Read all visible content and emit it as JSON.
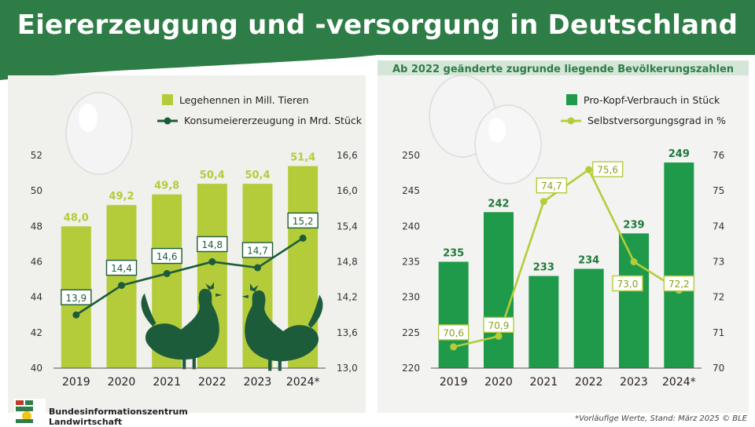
{
  "header": {
    "title": "Eiererzeugung und -versorgung in Deutschland"
  },
  "subheading": "Ab 2022 geänderte zugrunde liegende Bevölkerungszahlen",
  "footer": {
    "org_line1": "Bundesinformationszentrum",
    "org_line2": "Landwirtschaft",
    "footnote": "*Vorläufige Werte, Stand: März 2025 © BLE"
  },
  "colors": {
    "brand_green": "#2e7d46",
    "light_green": "#b5cc3a",
    "dark_line": "#1d5c3b",
    "mid_green": "#1f9a4a"
  },
  "chart_data": [
    {
      "type": "bar",
      "categories": [
        "2019",
        "2020",
        "2021",
        "2022",
        "2023",
        "2024*"
      ],
      "series": [
        {
          "name": "Legehennen in Mill. Tieren",
          "type": "bar",
          "axis": "left",
          "values": [
            48.0,
            49.2,
            49.8,
            50.4,
            50.4,
            51.4
          ],
          "labels": [
            "48,0",
            "49,2",
            "49,8",
            "50,4",
            "50,4",
            "51,4"
          ]
        },
        {
          "name": "Konsumeiererzeugung in Mrd. Stück",
          "type": "line",
          "axis": "right",
          "values": [
            13.9,
            14.4,
            14.6,
            14.8,
            14.7,
            15.2
          ],
          "labels": [
            "13,9",
            "14,4",
            "14,6",
            "14,8",
            "14,7",
            "15,2"
          ]
        }
      ],
      "yleft": {
        "range": [
          40,
          52
        ],
        "ticks": [
          "40",
          "42",
          "44",
          "46",
          "48",
          "50",
          "52"
        ],
        "tick_values": [
          40,
          42,
          44,
          46,
          48,
          50,
          52
        ]
      },
      "yright": {
        "range": [
          13.0,
          16.6
        ],
        "ticks": [
          "13,0",
          "13,6",
          "14,2",
          "14,8",
          "15,4",
          "16,0",
          "16,6"
        ],
        "tick_values": [
          13.0,
          13.6,
          14.2,
          14.8,
          15.4,
          16.0,
          16.6
        ]
      },
      "legend_position": "top-right"
    },
    {
      "type": "bar",
      "categories": [
        "2019",
        "2020",
        "2021",
        "2022",
        "2023",
        "2024*"
      ],
      "series": [
        {
          "name": "Pro-Kopf-Verbrauch in Stück",
          "type": "bar",
          "axis": "left",
          "values": [
            235,
            242,
            233,
            234,
            239,
            249
          ],
          "labels": [
            "235",
            "242",
            "233",
            "234",
            "239",
            "249"
          ]
        },
        {
          "name": "Selbstversorgungsgrad in %",
          "type": "line",
          "axis": "right",
          "values": [
            70.6,
            70.9,
            74.7,
            75.6,
            73.0,
            72.2
          ],
          "labels": [
            "70,6",
            "70,9",
            "74,7",
            "75,6",
            "73,0",
            "72,2"
          ]
        }
      ],
      "yleft": {
        "range": [
          220,
          250
        ],
        "ticks": [
          "220",
          "225",
          "230",
          "235",
          "240",
          "245",
          "250"
        ],
        "tick_values": [
          220,
          225,
          230,
          235,
          240,
          245,
          250
        ]
      },
      "yright": {
        "range": [
          70,
          76
        ],
        "ticks": [
          "70",
          "71",
          "72",
          "73",
          "74",
          "75",
          "76"
        ],
        "tick_values": [
          70,
          71,
          72,
          73,
          74,
          75,
          76
        ]
      },
      "legend_position": "top-right"
    }
  ]
}
